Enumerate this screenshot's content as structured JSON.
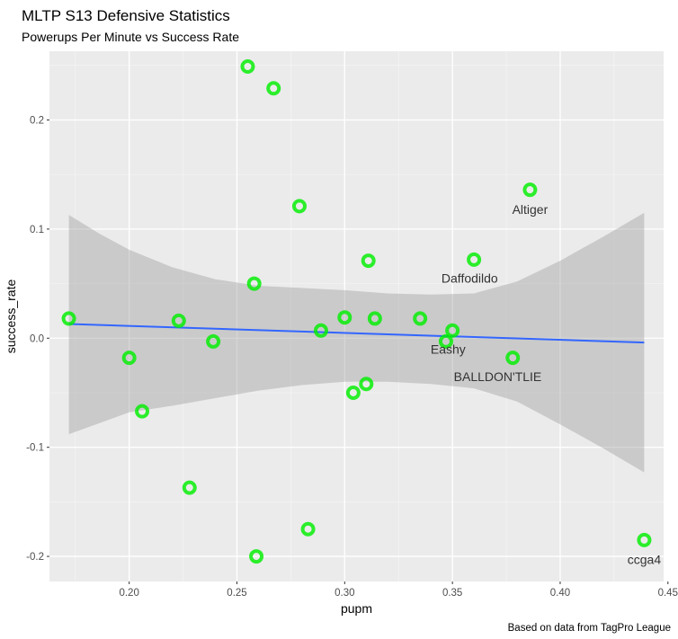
{
  "chart_data": {
    "type": "scatter",
    "title": "MLTP S13 Defensive Statistics",
    "subtitle": "Powerups Per Minute vs Success Rate",
    "xlabel": "pupm",
    "ylabel": "success_rate",
    "caption": "Based on data from TagPro League",
    "xlim": [
      0.163,
      0.448
    ],
    "ylim": [
      -0.223,
      0.263
    ],
    "x_ticks": [
      0.2,
      0.25,
      0.3,
      0.35,
      0.4,
      0.45
    ],
    "x_tick_labels": [
      "0.20",
      "0.25",
      "0.30",
      "0.35",
      "0.40",
      "0.45"
    ],
    "y_ticks": [
      -0.2,
      -0.1,
      0.0,
      0.1,
      0.2
    ],
    "y_tick_labels": [
      "-0.2",
      "-0.1",
      "0.0",
      "0.1",
      "0.2"
    ],
    "grid": true,
    "background": "#ebebeb",
    "point_color": "#00ee00",
    "line_color": "#3366ff",
    "band_color": "#999999",
    "points": [
      {
        "x": 0.172,
        "y": 0.018
      },
      {
        "x": 0.2,
        "y": -0.018
      },
      {
        "x": 0.206,
        "y": -0.067
      },
      {
        "x": 0.223,
        "y": 0.016
      },
      {
        "x": 0.228,
        "y": -0.137
      },
      {
        "x": 0.239,
        "y": -0.003
      },
      {
        "x": 0.255,
        "y": 0.249
      },
      {
        "x": 0.258,
        "y": 0.05
      },
      {
        "x": 0.259,
        "y": -0.2
      },
      {
        "x": 0.267,
        "y": 0.229
      },
      {
        "x": 0.279,
        "y": 0.121
      },
      {
        "x": 0.283,
        "y": -0.175
      },
      {
        "x": 0.289,
        "y": 0.007
      },
      {
        "x": 0.3,
        "y": 0.019
      },
      {
        "x": 0.304,
        "y": -0.05
      },
      {
        "x": 0.31,
        "y": -0.042
      },
      {
        "x": 0.311,
        "y": 0.071
      },
      {
        "x": 0.314,
        "y": 0.018
      },
      {
        "x": 0.335,
        "y": 0.018
      },
      {
        "x": 0.347,
        "y": -0.003
      },
      {
        "x": 0.35,
        "y": 0.007
      },
      {
        "x": 0.36,
        "y": 0.072
      },
      {
        "x": 0.378,
        "y": -0.018
      },
      {
        "x": 0.386,
        "y": 0.136
      },
      {
        "x": 0.439,
        "y": -0.185
      }
    ],
    "labels": [
      {
        "text": "Altiger",
        "x": 0.386,
        "y": 0.118
      },
      {
        "text": "Daffodildo",
        "x": 0.358,
        "y": 0.055
      },
      {
        "text": "Eashy",
        "x": 0.348,
        "y": -0.01
      },
      {
        "text": "BALLDON'TLIE",
        "x": 0.371,
        "y": -0.035
      },
      {
        "text": "ccga4",
        "x": 0.439,
        "y": -0.203
      }
    ],
    "fit_line": {
      "x": [
        0.172,
        0.439
      ],
      "y": [
        0.013,
        -0.004
      ]
    },
    "confidence_band": {
      "x": [
        0.172,
        0.186,
        0.2,
        0.22,
        0.24,
        0.26,
        0.28,
        0.3,
        0.32,
        0.34,
        0.36,
        0.38,
        0.4,
        0.42,
        0.439
      ],
      "lower": [
        -0.088,
        -0.078,
        -0.068,
        -0.062,
        -0.055,
        -0.048,
        -0.043,
        -0.04,
        -0.04,
        -0.042,
        -0.046,
        -0.058,
        -0.079,
        -0.101,
        -0.123
      ],
      "upper": [
        0.113,
        0.096,
        0.081,
        0.065,
        0.054,
        0.048,
        0.046,
        0.044,
        0.041,
        0.04,
        0.041,
        0.052,
        0.071,
        0.093,
        0.115
      ]
    }
  }
}
